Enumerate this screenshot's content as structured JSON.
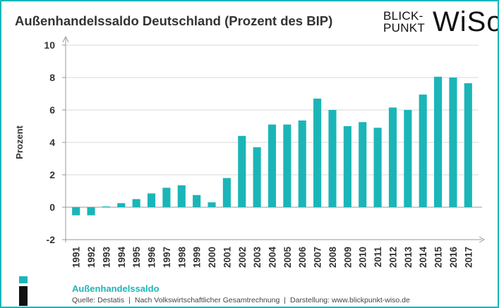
{
  "header": {
    "title": "Außenhandelssaldo Deutschland (Prozent des BIP)",
    "brand_line1": "BLICK-",
    "brand_line2": "PUNKT",
    "brand_main": "WiSo"
  },
  "footer": {
    "series_label": "Außenhandelssaldo",
    "source": "Quelle: Destatis",
    "method": "Nach Volkswirtschaftlicher Gesamtrechnung",
    "credit": "Darstellung: www.blickpunkt-wiso.de"
  },
  "colors": {
    "accent": "#1bb5b8",
    "bar": "#1bb5b8",
    "text": "#333333"
  },
  "chart_data": {
    "type": "bar",
    "title": "Außenhandelssaldo Deutschland (Prozent des BIP)",
    "xlabel": "",
    "ylabel": "Prozent",
    "ylim": [
      -2,
      10
    ],
    "yticks": [
      -2,
      0,
      2,
      4,
      6,
      8,
      10
    ],
    "grid": true,
    "categories": [
      "1991",
      "1992",
      "1993",
      "1994",
      "1995",
      "1996",
      "1997",
      "1998",
      "1999",
      "2000",
      "2001",
      "2002",
      "2003",
      "2004",
      "2005",
      "2006",
      "2007",
      "2008",
      "2009",
      "2010",
      "2011",
      "2012",
      "2013",
      "2014",
      "2015",
      "2016",
      "2017"
    ],
    "series": [
      {
        "name": "Außenhandelssaldo",
        "values": [
          -0.5,
          -0.5,
          0.05,
          0.25,
          0.5,
          0.85,
          1.2,
          1.35,
          0.75,
          0.3,
          1.8,
          4.4,
          3.7,
          5.1,
          5.1,
          5.35,
          6.7,
          6.0,
          5.0,
          5.25,
          4.9,
          6.15,
          6.0,
          6.95,
          8.05,
          8.0,
          7.65
        ]
      }
    ]
  }
}
